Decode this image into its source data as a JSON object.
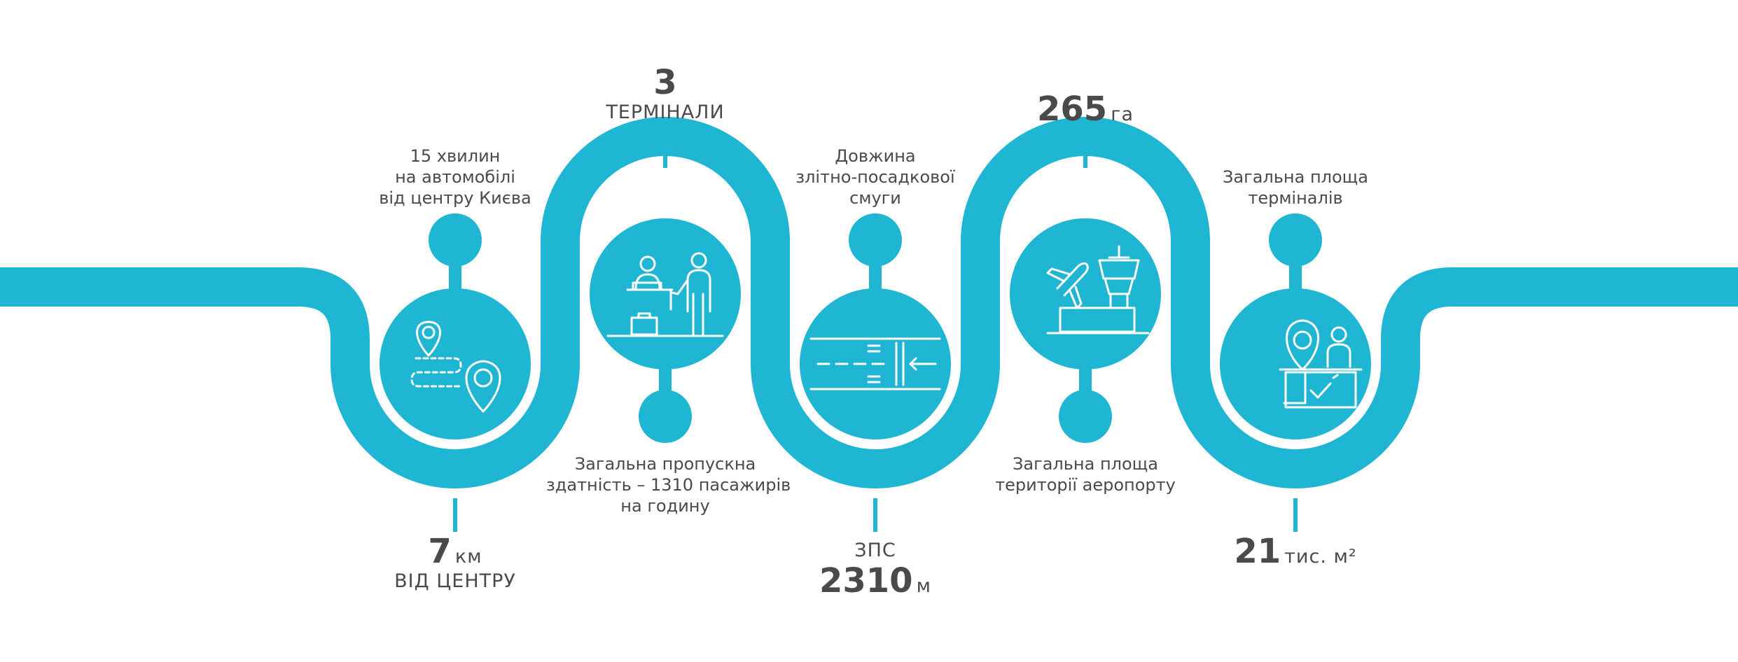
{
  "colors": {
    "path": "#1fb6d3",
    "icon_stroke": "#ffffff",
    "text": "#4a4a4a"
  },
  "stats": [
    {
      "value": "7",
      "unit": "км",
      "label": "ВІД ЦЕНТРУ"
    },
    {
      "value": "3",
      "label": "ТЕРМІНАЛИ"
    },
    {
      "label": "ЗПС",
      "value": "2310",
      "unit": "м"
    },
    {
      "value": "265",
      "unit": "га"
    },
    {
      "value": "21",
      "unit": "тис. м²"
    }
  ],
  "descriptions": [
    {
      "lines": [
        "15 хвилин",
        "на автомобілі",
        "від центру Києва"
      ]
    },
    {
      "lines": [
        "Загальна пропускна",
        "здатність – 1310 пасажирів",
        "на годину"
      ]
    },
    {
      "lines": [
        "Довжина",
        "злітно-посадкової",
        "смуги"
      ]
    },
    {
      "lines": [
        "Загальна площа",
        "території аеропорту"
      ]
    },
    {
      "lines": [
        "Загальна площа",
        "терміналів"
      ]
    }
  ],
  "icons": [
    "route-pin-icon",
    "check-in-desk-icon",
    "runway-icon",
    "control-tower-icon",
    "terminal-pin-icon"
  ]
}
